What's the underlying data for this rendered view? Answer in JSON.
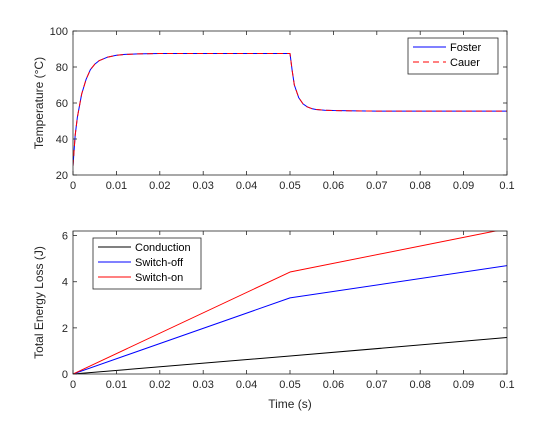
{
  "chart_data": [
    {
      "type": "line",
      "title": "",
      "xlabel": "",
      "ylabel": "Temperature (°C)",
      "xlim": [
        0,
        0.1
      ],
      "ylim": [
        20,
        100
      ],
      "xticks": [
        "0",
        "0.01",
        "0.02",
        "0.03",
        "0.04",
        "0.05",
        "0.06",
        "0.07",
        "0.08",
        "0.09",
        "0.1"
      ],
      "yticks": [
        "20",
        "40",
        "60",
        "80",
        "100"
      ],
      "grid": false,
      "legend_position": "top-right",
      "series": [
        {
          "name": "Foster",
          "color": "#0000ff",
          "style": "solid",
          "x": [
            0,
            0.0005,
            0.001,
            0.002,
            0.003,
            0.004,
            0.005,
            0.006,
            0.008,
            0.01,
            0.012,
            0.015,
            0.02,
            0.03,
            0.04,
            0.05,
            0.0505,
            0.051,
            0.052,
            0.053,
            0.054,
            0.055,
            0.056,
            0.058,
            0.06,
            0.065,
            0.07,
            0.08,
            0.09,
            0.1
          ],
          "y": [
            25,
            42,
            52,
            65,
            73,
            78.5,
            81.5,
            83.5,
            85.5,
            86.5,
            87,
            87.3,
            87.5,
            87.5,
            87.5,
            87.5,
            78,
            70,
            63,
            59.5,
            57.8,
            56.9,
            56.4,
            56,
            55.8,
            55.6,
            55.5,
            55.5,
            55.5,
            55.5
          ]
        },
        {
          "name": "Cauer",
          "color": "#ff0000",
          "style": "dashed",
          "x": [
            0,
            0.0005,
            0.001,
            0.002,
            0.003,
            0.004,
            0.005,
            0.006,
            0.008,
            0.01,
            0.012,
            0.015,
            0.02,
            0.03,
            0.04,
            0.05,
            0.0505,
            0.051,
            0.052,
            0.053,
            0.054,
            0.055,
            0.056,
            0.058,
            0.06,
            0.065,
            0.07,
            0.08,
            0.09,
            0.1
          ],
          "y": [
            25,
            42,
            52,
            65,
            73,
            78.5,
            81.5,
            83.5,
            85.5,
            86.5,
            87,
            87.3,
            87.5,
            87.5,
            87.5,
            87.5,
            78,
            70,
            63,
            59.5,
            57.8,
            56.9,
            56.4,
            56,
            55.8,
            55.6,
            55.5,
            55.5,
            55.5,
            55.5
          ]
        }
      ]
    },
    {
      "type": "line",
      "title": "",
      "xlabel": "Time (s)",
      "ylabel": "Total Energy Loss (J)",
      "xlim": [
        0,
        0.1
      ],
      "ylim": [
        0,
        6.2
      ],
      "xticks": [
        "0",
        "0.01",
        "0.02",
        "0.03",
        "0.04",
        "0.05",
        "0.06",
        "0.07",
        "0.08",
        "0.09",
        "0.1"
      ],
      "yticks": [
        "0",
        "2",
        "4",
        "6"
      ],
      "grid": false,
      "legend_position": "top-left",
      "series": [
        {
          "name": "Conduction",
          "color": "#000000",
          "style": "solid",
          "x": [
            0,
            0.05,
            0.1
          ],
          "y": [
            0,
            0.78,
            1.58
          ]
        },
        {
          "name": "Switch-off",
          "color": "#0000ff",
          "style": "solid",
          "x": [
            0,
            0.05,
            0.1
          ],
          "y": [
            0,
            3.3,
            4.7
          ]
        },
        {
          "name": "Switch-on",
          "color": "#ff0000",
          "style": "solid",
          "x": [
            0,
            0.05,
            0.1
          ],
          "y": [
            0,
            4.42,
            6.3
          ]
        }
      ]
    }
  ]
}
